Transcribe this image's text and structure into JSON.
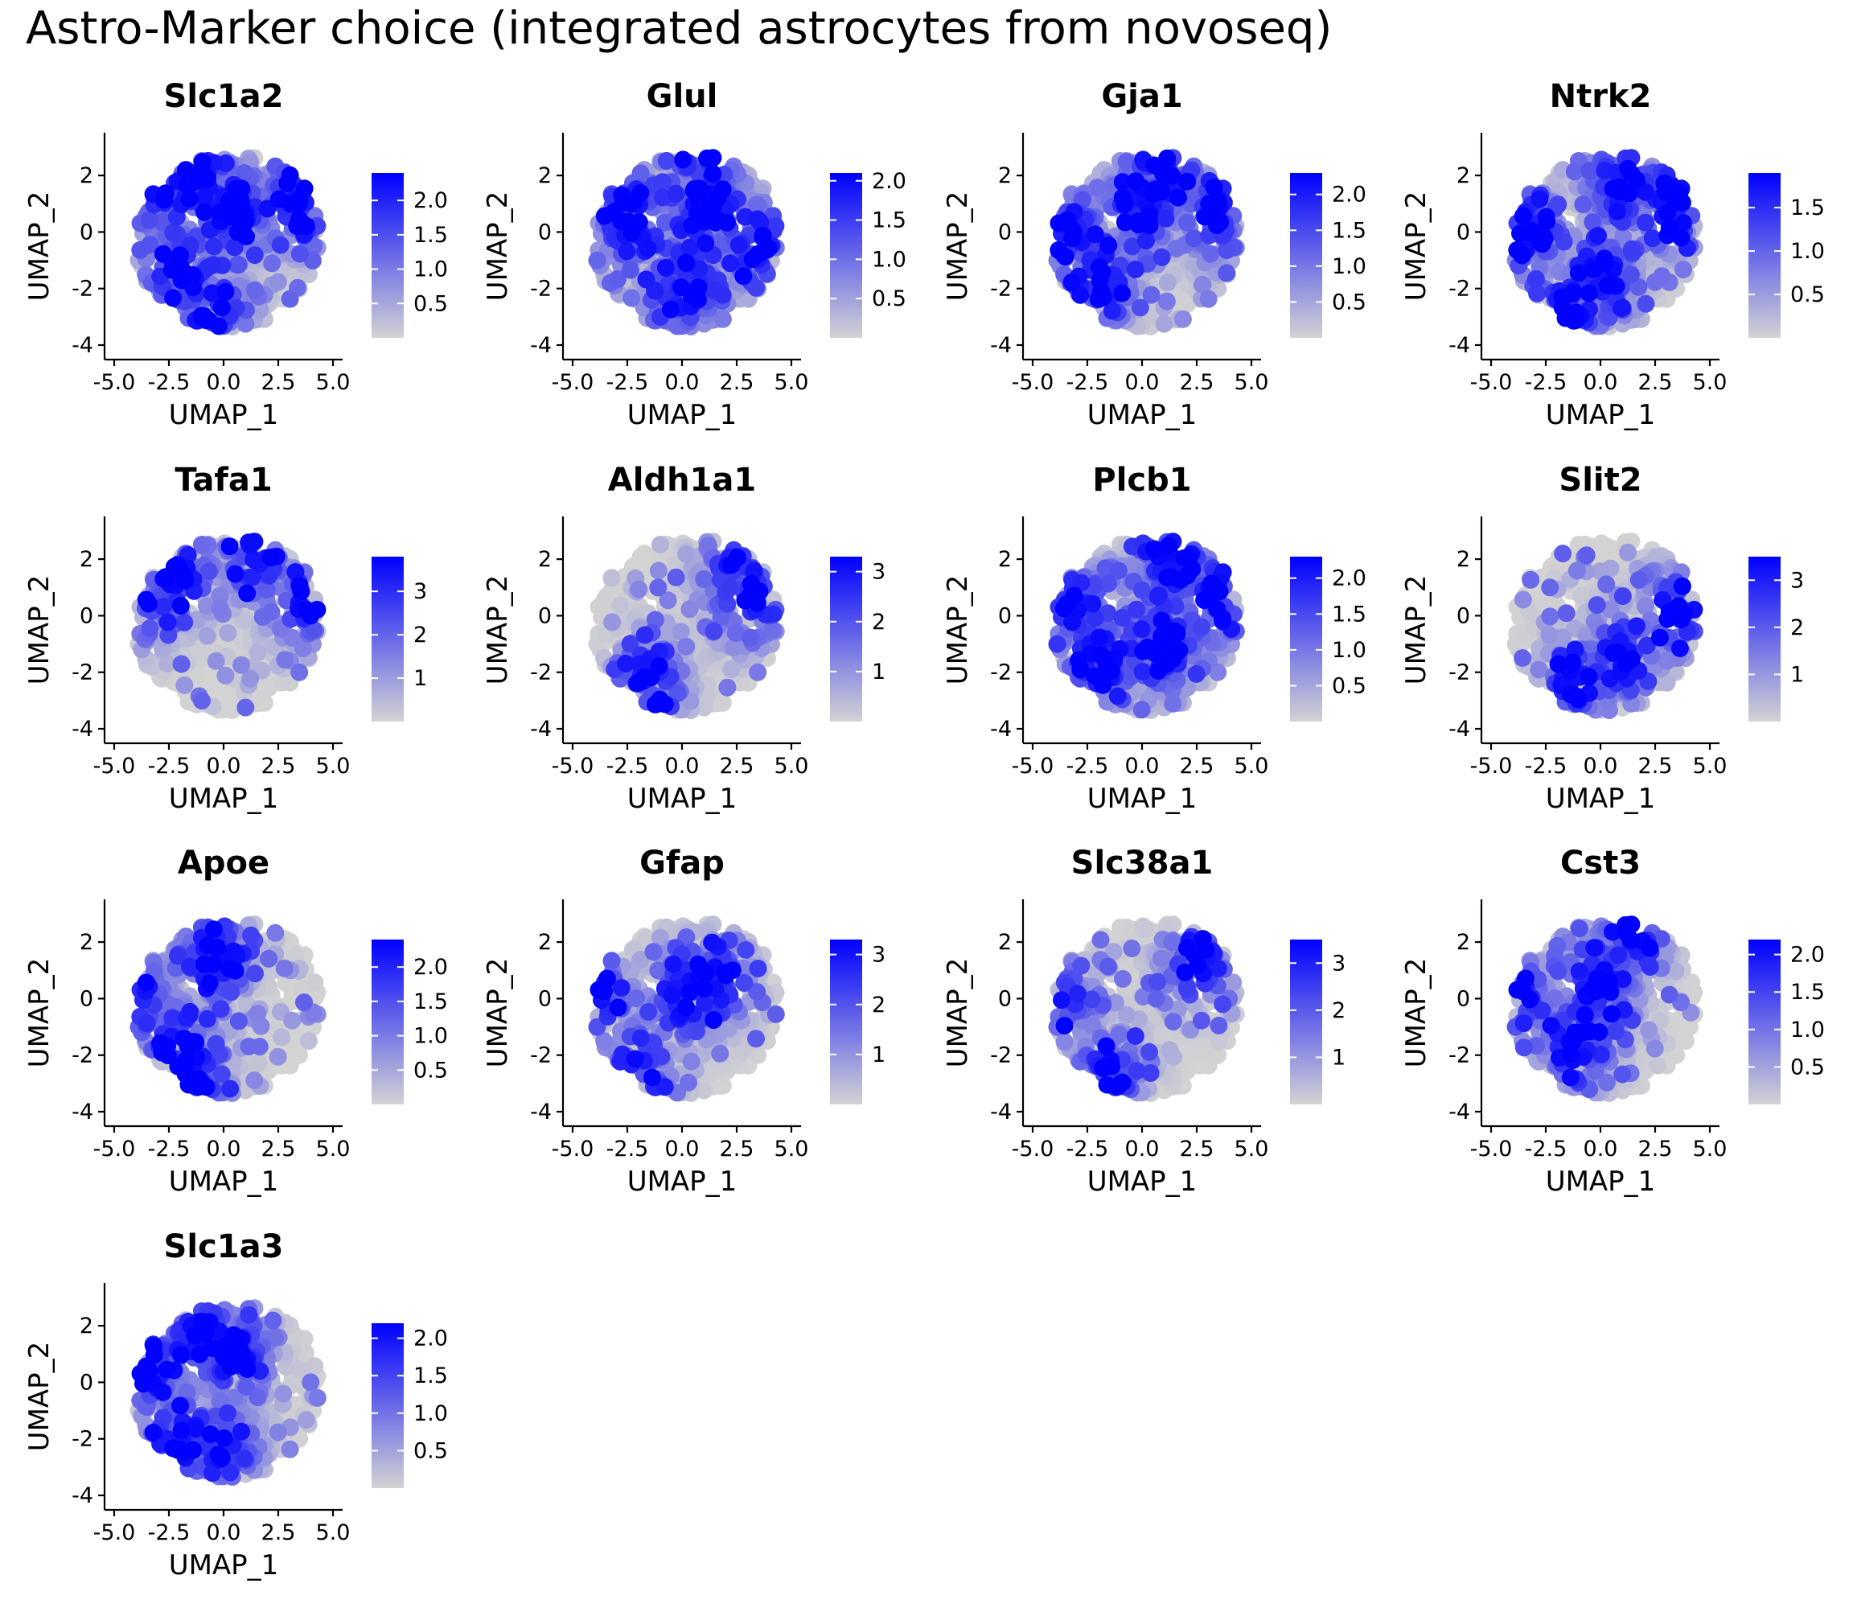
{
  "title": "Astro-Marker choice (integrated astrocytes from novoseq)",
  "colors": {
    "low": "#d3d3d3",
    "high": "#0000ff",
    "axis": "#000000"
  },
  "chart_data": [
    {
      "type": "scatter",
      "title": "Slc1a2",
      "xlabel": "UMAP_1",
      "ylabel": "UMAP_2",
      "xlim": [
        -5,
        5
      ],
      "ylim": [
        -4,
        3
      ],
      "xticks": [
        -5,
        -2.5,
        0,
        2.5,
        5
      ],
      "yticks": [
        -4,
        -2,
        0,
        2
      ],
      "xtick_labels": [
        "-5.0",
        "-2.5",
        "0.0",
        "2.5",
        "5.0"
      ],
      "ytick_labels": [
        "-4",
        "-2",
        "0",
        "2"
      ],
      "legend": {
        "min": 0,
        "max": 2.4,
        "breaks": [
          0.5,
          1.0,
          1.5,
          2.0
        ],
        "labels": [
          "0.5",
          "1.0",
          "1.5",
          "2.0"
        ]
      },
      "hotspots": [
        [
          -3.5,
          1.5
        ],
        [
          -2,
          -1.5
        ],
        [
          -0.5,
          -3
        ],
        [
          3.5,
          1
        ],
        [
          -1.2,
          2
        ],
        [
          0.5,
          0.8
        ]
      ],
      "density": 0.7
    },
    {
      "type": "scatter",
      "title": "Glul",
      "xlabel": "UMAP_1",
      "ylabel": "UMAP_2",
      "xlim": [
        -5,
        5
      ],
      "ylim": [
        -4,
        3
      ],
      "xticks": [
        -5,
        -2.5,
        0,
        2.5,
        5
      ],
      "yticks": [
        -4,
        -2,
        0,
        2
      ],
      "xtick_labels": [
        "-5.0",
        "-2.5",
        "0.0",
        "2.5",
        "5.0"
      ],
      "ytick_labels": [
        "-4",
        "-2",
        "0",
        "2"
      ],
      "legend": {
        "min": 0,
        "max": 2.1,
        "breaks": [
          0.5,
          1.0,
          1.5,
          2.0
        ],
        "labels": [
          "0.5",
          "1.0",
          "1.5",
          "2.0"
        ]
      },
      "hotspots": [
        [
          -2.5,
          0.5
        ],
        [
          1.2,
          0.8
        ],
        [
          3.5,
          -0.5
        ],
        [
          0,
          -2
        ],
        [
          1.2,
          2.8
        ]
      ],
      "density": 0.75
    },
    {
      "type": "scatter",
      "title": "Gja1",
      "xlabel": "UMAP_1",
      "ylabel": "UMAP_2",
      "xlim": [
        -5,
        5
      ],
      "ylim": [
        -4,
        3
      ],
      "xticks": [
        -5,
        -2.5,
        0,
        2.5,
        5
      ],
      "yticks": [
        -4,
        -2,
        0,
        2
      ],
      "xtick_labels": [
        "-5.0",
        "-2.5",
        "0.0",
        "2.5",
        "5.0"
      ],
      "ytick_labels": [
        "-4",
        "-2",
        "0",
        "2"
      ],
      "legend": {
        "min": 0,
        "max": 2.3,
        "breaks": [
          0.5,
          1.0,
          1.5,
          2.0
        ],
        "labels": [
          "0.5",
          "1.0",
          "1.5",
          "2.0"
        ]
      },
      "hotspots": [
        [
          -3.5,
          0
        ],
        [
          -2,
          -1.8
        ],
        [
          0,
          1
        ],
        [
          3.5,
          0.5
        ],
        [
          1,
          2.2
        ]
      ],
      "density": 0.7
    },
    {
      "type": "scatter",
      "title": "Ntrk2",
      "xlabel": "UMAP_1",
      "ylabel": "UMAP_2",
      "xlim": [
        -5,
        5
      ],
      "ylim": [
        -4,
        3
      ],
      "xticks": [
        -5,
        -2.5,
        0,
        2.5,
        5
      ],
      "yticks": [
        -4,
        -2,
        0,
        2
      ],
      "xtick_labels": [
        "-5.0",
        "-2.5",
        "0.0",
        "2.5",
        "5.0"
      ],
      "ytick_labels": [
        "-4",
        "-2",
        "0",
        "2"
      ],
      "legend": {
        "min": 0,
        "max": 1.9,
        "breaks": [
          0.5,
          1.0,
          1.5
        ],
        "labels": [
          "0.5",
          "1.0",
          "1.5"
        ]
      },
      "hotspots": [
        [
          -3.5,
          0
        ],
        [
          0,
          -1.8
        ],
        [
          1,
          1.8
        ],
        [
          3.5,
          1
        ],
        [
          -1.5,
          -2.8
        ]
      ],
      "density": 0.7
    },
    {
      "type": "scatter",
      "title": "Tafa1",
      "xlabel": "UMAP_1",
      "ylabel": "UMAP_2",
      "xlim": [
        -5,
        5
      ],
      "ylim": [
        -4,
        3
      ],
      "xticks": [
        -5,
        -2.5,
        0,
        2.5,
        5
      ],
      "yticks": [
        -4,
        -2,
        0,
        2
      ],
      "xtick_labels": [
        "-5.0",
        "-2.5",
        "0.0",
        "2.5",
        "5.0"
      ],
      "ytick_labels": [
        "-4",
        "-2",
        "0",
        "2"
      ],
      "legend": {
        "min": 0,
        "max": 3.8,
        "breaks": [
          1,
          2,
          3
        ],
        "labels": [
          "1",
          "2",
          "3"
        ]
      },
      "hotspots": [
        [
          3.5,
          0.5
        ],
        [
          -4,
          0.5
        ],
        [
          1.5,
          2.2
        ],
        [
          -2,
          1.5
        ]
      ],
      "density": 0.45
    },
    {
      "type": "scatter",
      "title": "Aldh1a1",
      "xlabel": "UMAP_1",
      "ylabel": "UMAP_2",
      "xlim": [
        -5,
        5
      ],
      "ylim": [
        -4,
        3
      ],
      "xticks": [
        -5,
        -2.5,
        0,
        2.5,
        5
      ],
      "yticks": [
        -4,
        -2,
        0,
        2
      ],
      "xtick_labels": [
        "-5.0",
        "-2.5",
        "0.0",
        "2.5",
        "5.0"
      ],
      "ytick_labels": [
        "-4",
        "-2",
        "0",
        "2"
      ],
      "legend": {
        "min": 0,
        "max": 3.3,
        "breaks": [
          1,
          2,
          3
        ],
        "labels": [
          "1",
          "2",
          "3"
        ]
      },
      "hotspots": [
        [
          3,
          0.5
        ],
        [
          -1.5,
          -2.5
        ],
        [
          2.5,
          2
        ]
      ],
      "density": 0.5
    },
    {
      "type": "scatter",
      "title": "Plcb1",
      "xlabel": "UMAP_1",
      "ylabel": "UMAP_2",
      "xlim": [
        -5,
        5
      ],
      "ylim": [
        -4,
        3
      ],
      "xticks": [
        -5,
        -2.5,
        0,
        2.5,
        5
      ],
      "yticks": [
        -4,
        -2,
        0,
        2
      ],
      "xtick_labels": [
        "-5.0",
        "-2.5",
        "0.0",
        "2.5",
        "5.0"
      ],
      "ytick_labels": [
        "-4",
        "-2",
        "0",
        "2"
      ],
      "legend": {
        "min": 0,
        "max": 2.3,
        "breaks": [
          0.5,
          1.0,
          1.5,
          2.0
        ],
        "labels": [
          "0.5",
          "1.0",
          "1.5",
          "2.0"
        ]
      },
      "hotspots": [
        [
          1.5,
          2
        ],
        [
          3.5,
          0.5
        ],
        [
          -2,
          -1.5
        ],
        [
          -3.5,
          0.5
        ],
        [
          1,
          -1
        ]
      ],
      "density": 0.75
    },
    {
      "type": "scatter",
      "title": "Slit2",
      "xlabel": "UMAP_1",
      "ylabel": "UMAP_2",
      "xlim": [
        -5,
        5
      ],
      "ylim": [
        -4,
        3
      ],
      "xticks": [
        -5,
        -2.5,
        0,
        2.5,
        5
      ],
      "yticks": [
        -4,
        -2,
        0,
        2
      ],
      "xtick_labels": [
        "-5.0",
        "-2.5",
        "0.0",
        "2.5",
        "5.0"
      ],
      "ytick_labels": [
        "-4",
        "-2",
        "0",
        "2"
      ],
      "legend": {
        "min": 0,
        "max": 3.5,
        "breaks": [
          1,
          2,
          3
        ],
        "labels": [
          "1",
          "2",
          "3"
        ]
      },
      "hotspots": [
        [
          -1,
          -2.5
        ],
        [
          3.5,
          0
        ],
        [
          1,
          -1.5
        ]
      ],
      "density": 0.45
    },
    {
      "type": "scatter",
      "title": "Apoe",
      "xlabel": "UMAP_1",
      "ylabel": "UMAP_2",
      "xlim": [
        -5,
        5
      ],
      "ylim": [
        -4,
        3
      ],
      "xticks": [
        -5,
        -2.5,
        0,
        2.5,
        5
      ],
      "yticks": [
        -4,
        -2,
        0,
        2
      ],
      "xtick_labels": [
        "-5.0",
        "-2.5",
        "0.0",
        "2.5",
        "5.0"
      ],
      "ytick_labels": [
        "-4",
        "-2",
        "0",
        "2"
      ],
      "legend": {
        "min": 0,
        "max": 2.4,
        "breaks": [
          0.5,
          1.0,
          1.5,
          2.0
        ],
        "labels": [
          "0.5",
          "1.0",
          "1.5",
          "2.0"
        ]
      },
      "hotspots": [
        [
          -4,
          0
        ],
        [
          -2,
          -1.5
        ],
        [
          -0.5,
          1.5
        ],
        [
          -1.5,
          -3
        ]
      ],
      "density": 0.6
    },
    {
      "type": "scatter",
      "title": "Gfap",
      "xlabel": "UMAP_1",
      "ylabel": "UMAP_2",
      "xlim": [
        -5,
        5
      ],
      "ylim": [
        -4,
        3
      ],
      "xticks": [
        -5,
        -2.5,
        0,
        2.5,
        5
      ],
      "yticks": [
        -4,
        -2,
        0,
        2
      ],
      "xtick_labels": [
        "-5.0",
        "-2.5",
        "0.0",
        "2.5",
        "5.0"
      ],
      "ytick_labels": [
        "-4",
        "-2",
        "0",
        "2"
      ],
      "legend": {
        "min": 0,
        "max": 3.3,
        "breaks": [
          1,
          2,
          3
        ],
        "labels": [
          "1",
          "2",
          "3"
        ]
      },
      "hotspots": [
        [
          -2,
          -2.5
        ],
        [
          -4,
          0
        ],
        [
          0,
          0
        ],
        [
          1.5,
          0.5
        ]
      ],
      "density": 0.45
    },
    {
      "type": "scatter",
      "title": "Slc38a1",
      "xlabel": "UMAP_1",
      "ylabel": "UMAP_2",
      "xlim": [
        -5,
        5
      ],
      "ylim": [
        -4,
        3
      ],
      "xticks": [
        -5,
        -2.5,
        0,
        2.5,
        5
      ],
      "yticks": [
        -4,
        -2,
        0,
        2
      ],
      "xtick_labels": [
        "-5.0",
        "-2.5",
        "0.0",
        "2.5",
        "5.0"
      ],
      "ytick_labels": [
        "-4",
        "-2",
        "0",
        "2"
      ],
      "legend": {
        "min": 0,
        "max": 3.5,
        "breaks": [
          1,
          2,
          3
        ],
        "labels": [
          "1",
          "2",
          "3"
        ]
      },
      "hotspots": [
        [
          -1.5,
          -2.8
        ],
        [
          -4,
          0
        ],
        [
          2.5,
          1.5
        ]
      ],
      "density": 0.45
    },
    {
      "type": "scatter",
      "title": "Cst3",
      "xlabel": "UMAP_1",
      "ylabel": "UMAP_2",
      "xlim": [
        -5,
        5
      ],
      "ylim": [
        -4,
        3
      ],
      "xticks": [
        -5,
        -2.5,
        0,
        2.5,
        5
      ],
      "yticks": [
        -4,
        -2,
        0,
        2
      ],
      "xtick_labels": [
        "-5.0",
        "-2.5",
        "0.0",
        "2.5",
        "5.0"
      ],
      "ytick_labels": [
        "-4",
        "-2",
        "0",
        "2"
      ],
      "legend": {
        "min": 0,
        "max": 2.2,
        "breaks": [
          0.5,
          1.0,
          1.5,
          2.0
        ],
        "labels": [
          "0.5",
          "1.0",
          "1.5",
          "2.0"
        ]
      },
      "hotspots": [
        [
          -4,
          0
        ],
        [
          -1,
          -1.5
        ],
        [
          1.5,
          2.5
        ],
        [
          0,
          0.5
        ]
      ],
      "density": 0.65
    },
    {
      "type": "scatter",
      "title": "Slc1a3",
      "xlabel": "UMAP_1",
      "ylabel": "UMAP_2",
      "xlim": [
        -5,
        5
      ],
      "ylim": [
        -4,
        3
      ],
      "xticks": [
        -5,
        -2.5,
        0,
        2.5,
        5
      ],
      "yticks": [
        -4,
        -2,
        0,
        2
      ],
      "xtick_labels": [
        "-5.0",
        "-2.5",
        "0.0",
        "2.5",
        "5.0"
      ],
      "ytick_labels": [
        "-4",
        "-2",
        "0",
        "2"
      ],
      "legend": {
        "min": 0,
        "max": 2.2,
        "breaks": [
          0.5,
          1.0,
          1.5,
          2.0
        ],
        "labels": [
          "0.5",
          "1.0",
          "1.5",
          "2.0"
        ]
      },
      "hotspots": [
        [
          -1,
          1.5
        ],
        [
          0,
          -2.5
        ],
        [
          -2,
          -2
        ],
        [
          -3.5,
          0.5
        ],
        [
          0.5,
          1
        ]
      ],
      "density": 0.65
    }
  ]
}
